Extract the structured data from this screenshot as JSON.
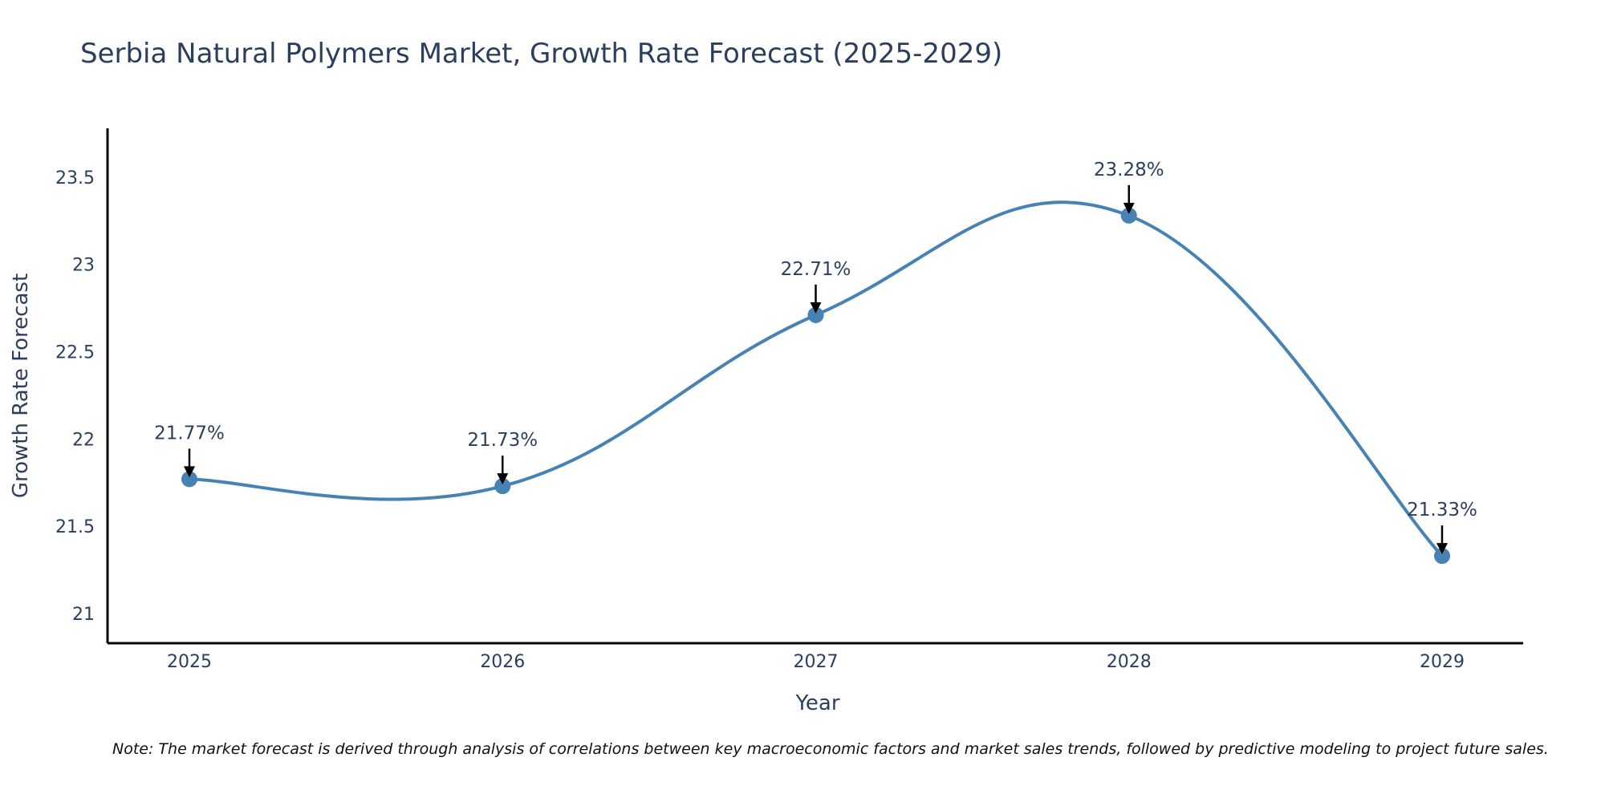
{
  "chart_data": {
    "type": "line",
    "title": "Serbia Natural Polymers Market, Growth Rate Forecast (2025-2029)",
    "xlabel": "Year",
    "ylabel": "Growth Rate Forecast",
    "categories": [
      "2025",
      "2026",
      "2027",
      "2028",
      "2029"
    ],
    "values": [
      21.77,
      21.73,
      22.71,
      23.28,
      21.33
    ],
    "data_labels": [
      "21.77%",
      "21.73%",
      "22.71%",
      "23.28%",
      "21.33%"
    ],
    "yticks": [
      21,
      21.5,
      22,
      22.5,
      23,
      23.5
    ],
    "ytick_labels": [
      "21",
      "21.5",
      "22",
      "22.5",
      "23",
      "23.5"
    ],
    "ylim": [
      20.83,
      23.78
    ],
    "grid": false,
    "line_shape": "spline",
    "line_color": "#4682b4",
    "note": "Note: The market forecast is derived through analysis of correlations between key macroeconomic factors and market sales trends, followed by predictive modeling to project future sales."
  }
}
